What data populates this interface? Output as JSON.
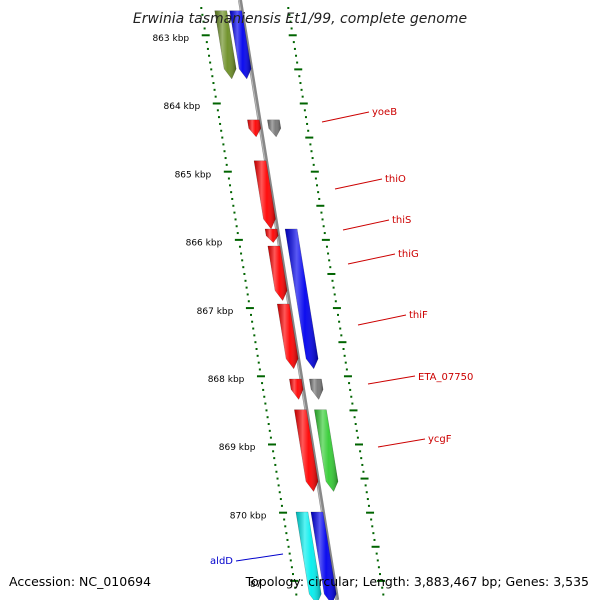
{
  "title": "Erwinia tasmaniensis Et1/99, complete genome",
  "footer": {
    "accession": "Accession: NC_010694",
    "tick_fragment": "87",
    "topology": "Topology: circular; Length: 3,883,467 bp; Genes: 3,535"
  },
  "colors": {
    "backbone": "#888888",
    "tick": "#006400",
    "red": "#ff0000",
    "gray": "#777777",
    "blue": "#0000ee",
    "green": "#33cc33",
    "olive": "#6b8e23",
    "cyan": "#00eeee",
    "label_red": "#cc0000",
    "label_blue": "#0000cc"
  },
  "chart_data": {
    "type": "genome-map",
    "scale_labels": [
      "863 kbp",
      "864 kbp",
      "865 kbp",
      "866 kbp",
      "867 kbp",
      "868 kbp",
      "869 kbp",
      "870 kbp"
    ],
    "scale_values_kbp": [
      863,
      864,
      865,
      866,
      867,
      868,
      869,
      870
    ],
    "gene_labels": [
      {
        "name": "yoeB",
        "color": "label_red"
      },
      {
        "name": "thiO",
        "color": "label_red"
      },
      {
        "name": "thiS",
        "color": "label_red"
      },
      {
        "name": "thiG",
        "color": "label_red"
      },
      {
        "name": "thiF",
        "color": "label_red"
      },
      {
        "name": "ETA_07750",
        "color": "label_red"
      },
      {
        "name": "ycgF",
        "color": "label_red"
      },
      {
        "name": "aldD",
        "color": "label_blue"
      }
    ],
    "features": [
      {
        "kbp_start": 862.6,
        "kbp_end": 863.6,
        "lane": "out2",
        "color": "olive"
      },
      {
        "kbp_start": 862.6,
        "kbp_end": 863.6,
        "lane": "out1",
        "color": "blue"
      },
      {
        "kbp_start": 864.2,
        "kbp_end": 864.45,
        "lane": "out1",
        "color": "red"
      },
      {
        "kbp_start": 864.2,
        "kbp_end": 864.45,
        "lane": "in1",
        "color": "gray"
      },
      {
        "kbp_start": 864.8,
        "kbp_end": 865.8,
        "lane": "out1",
        "color": "red"
      },
      {
        "kbp_start": 865.8,
        "kbp_end": 866.0,
        "lane": "out1",
        "color": "red"
      },
      {
        "kbp_start": 865.8,
        "kbp_end": 867.85,
        "lane": "in1",
        "color": "blue"
      },
      {
        "kbp_start": 866.05,
        "kbp_end": 866.85,
        "lane": "out1",
        "color": "red"
      },
      {
        "kbp_start": 866.9,
        "kbp_end": 867.85,
        "lane": "out1",
        "color": "red"
      },
      {
        "kbp_start": 868.0,
        "kbp_end": 868.3,
        "lane": "out1",
        "color": "red"
      },
      {
        "kbp_start": 868.0,
        "kbp_end": 868.3,
        "lane": "in1",
        "color": "gray"
      },
      {
        "kbp_start": 868.45,
        "kbp_end": 869.65,
        "lane": "out1",
        "color": "red"
      },
      {
        "kbp_start": 868.45,
        "kbp_end": 869.65,
        "lane": "in1",
        "color": "green"
      },
      {
        "kbp_start": 869.95,
        "kbp_end": 871.3,
        "lane": "out2",
        "color": "cyan"
      },
      {
        "kbp_start": 869.95,
        "kbp_end": 871.3,
        "lane": "out1",
        "color": "blue"
      }
    ]
  }
}
